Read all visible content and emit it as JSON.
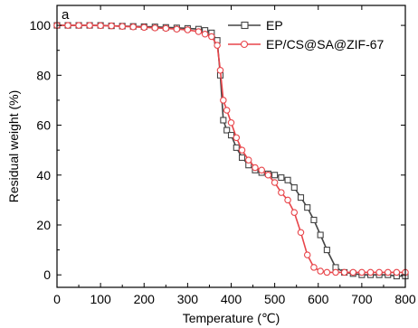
{
  "chart_data": {
    "type": "line",
    "panel_label": "a",
    "xlabel": "Temperature (℃)",
    "ylabel": "Residual weight (%)",
    "xlim": [
      0,
      800
    ],
    "ylim": [
      -5,
      108
    ],
    "xticks": [
      0,
      100,
      200,
      300,
      400,
      500,
      600,
      700,
      800
    ],
    "yticks": [
      0,
      20,
      40,
      60,
      80,
      100
    ],
    "grid": false,
    "legend_position": "top-right",
    "series": [
      {
        "name": "EP",
        "color": "#444444",
        "marker": "square",
        "x": [
          0,
          25,
          50,
          75,
          100,
          125,
          150,
          175,
          200,
          225,
          250,
          275,
          300,
          325,
          340,
          355,
          368,
          375,
          382,
          390,
          400,
          412,
          425,
          440,
          455,
          470,
          485,
          500,
          515,
          530,
          545,
          560,
          575,
          590,
          605,
          620,
          640,
          660,
          680,
          700,
          720,
          740,
          760,
          780,
          800
        ],
        "y": [
          100,
          100,
          100,
          100,
          100,
          99.8,
          99.7,
          99.6,
          99.5,
          99.4,
          99.2,
          99,
          98.8,
          98.5,
          98,
          97,
          94,
          80,
          62,
          58,
          56,
          51,
          47,
          44,
          42,
          41,
          40.5,
          40,
          39,
          38,
          35,
          31,
          27,
          22,
          16,
          10,
          3,
          1,
          0.5,
          0,
          0,
          0,
          0,
          -0.5,
          -0.5
        ]
      },
      {
        "name": "EP/CS@SA@ZIF-67",
        "color": "#e8454a",
        "marker": "circle",
        "x": [
          0,
          25,
          50,
          75,
          100,
          125,
          150,
          175,
          200,
          225,
          250,
          275,
          300,
          325,
          340,
          355,
          368,
          375,
          382,
          390,
          400,
          412,
          425,
          440,
          455,
          470,
          485,
          500,
          515,
          530,
          545,
          560,
          575,
          590,
          605,
          620,
          640,
          660,
          680,
          700,
          720,
          740,
          760,
          780,
          800
        ],
        "y": [
          100,
          100,
          100,
          100,
          99.9,
          99.8,
          99.6,
          99.4,
          99.2,
          99,
          98.8,
          98.5,
          98.2,
          97.5,
          96.5,
          95.5,
          92,
          82,
          70,
          66,
          61,
          55,
          50,
          46,
          43,
          42,
          40,
          37,
          33,
          30,
          25,
          17,
          8,
          3,
          1.5,
          1,
          1,
          1,
          1,
          1,
          1,
          1,
          1,
          1,
          1
        ]
      }
    ]
  }
}
